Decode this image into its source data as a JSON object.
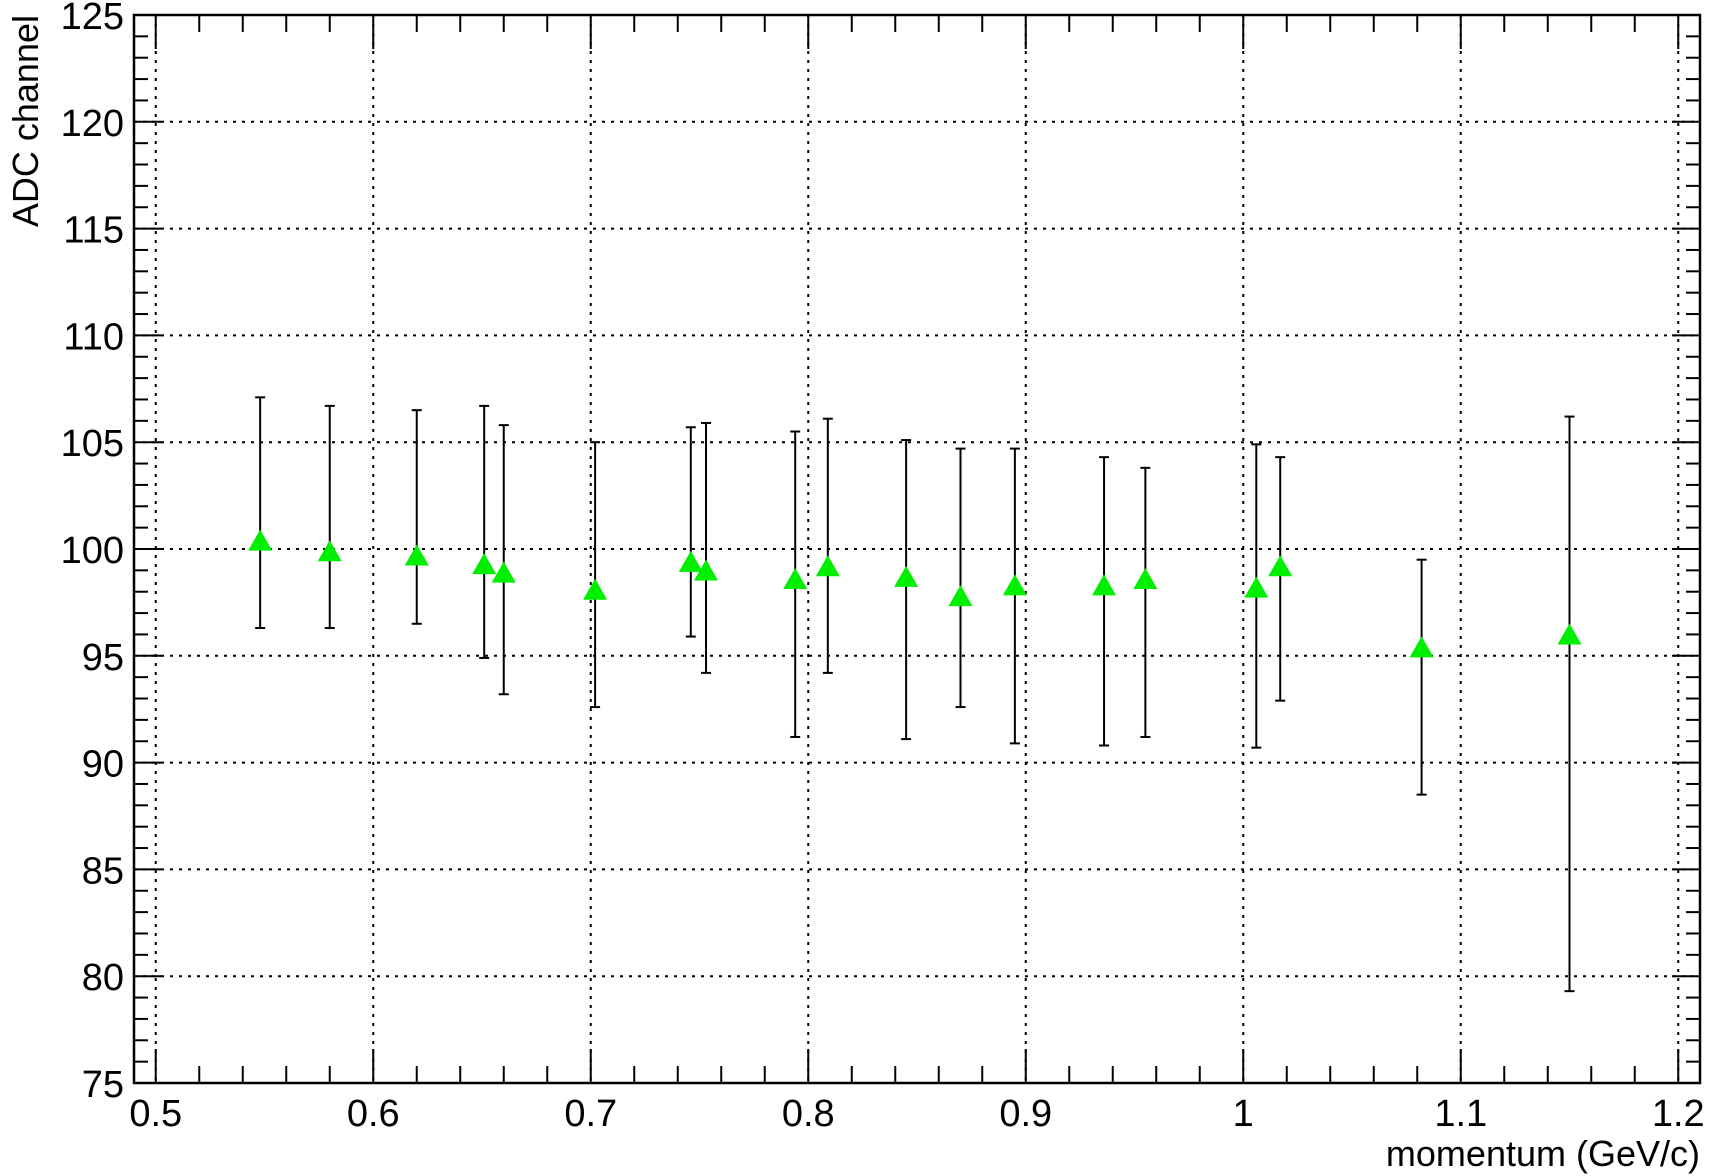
{
  "chart_data": {
    "type": "scatter",
    "title": "",
    "xlabel": "momentum (GeV/c)",
    "ylabel": "ADC channel",
    "xlim": [
      0.49,
      1.21
    ],
    "ylim": [
      75,
      125
    ],
    "x_major_ticks": [
      0.5,
      0.6,
      0.7,
      0.8,
      0.9,
      1,
      1.1,
      1.2
    ],
    "x_tick_labels": [
      "0.5",
      "0.6",
      "0.7",
      "0.8",
      "0.9",
      "1",
      "1.1",
      "1.2"
    ],
    "x_minor_step": 0.02,
    "y_major_ticks": [
      75,
      80,
      85,
      90,
      95,
      100,
      105,
      110,
      115,
      120,
      125
    ],
    "y_tick_labels": [
      "75",
      "80",
      "85",
      "90",
      "95",
      "100",
      "105",
      "110",
      "115",
      "120",
      "125"
    ],
    "y_minor_step": 1,
    "grid": true,
    "marker": "triangle-up",
    "marker_color": "#00ee00",
    "error_bar_color": "#000000",
    "series": [
      {
        "points": [
          {
            "x": 0.548,
            "y": 100.3,
            "err_low": 4.0,
            "err_high": 6.8
          },
          {
            "x": 0.58,
            "y": 99.8,
            "err_low": 3.5,
            "err_high": 6.9
          },
          {
            "x": 0.62,
            "y": 99.6,
            "err_low": 3.1,
            "err_high": 6.9
          },
          {
            "x": 0.651,
            "y": 99.2,
            "err_low": 4.3,
            "err_high": 7.5
          },
          {
            "x": 0.66,
            "y": 98.8,
            "err_low": 5.6,
            "err_high": 7.0
          },
          {
            "x": 0.702,
            "y": 98.0,
            "err_low": 5.4,
            "err_high": 7.0
          },
          {
            "x": 0.746,
            "y": 99.3,
            "err_low": 3.4,
            "err_high": 6.4
          },
          {
            "x": 0.753,
            "y": 98.9,
            "err_low": 4.7,
            "err_high": 7.0
          },
          {
            "x": 0.794,
            "y": 98.5,
            "err_low": 7.3,
            "err_high": 7.0
          },
          {
            "x": 0.809,
            "y": 99.1,
            "err_low": 4.9,
            "err_high": 7.0
          },
          {
            "x": 0.845,
            "y": 98.6,
            "err_low": 7.5,
            "err_high": 6.5
          },
          {
            "x": 0.87,
            "y": 97.7,
            "err_low": 5.1,
            "err_high": 7.0
          },
          {
            "x": 0.895,
            "y": 98.2,
            "err_low": 7.3,
            "err_high": 6.5
          },
          {
            "x": 0.936,
            "y": 98.2,
            "err_low": 7.4,
            "err_high": 6.1
          },
          {
            "x": 0.955,
            "y": 98.5,
            "err_low": 7.3,
            "err_high": 5.3
          },
          {
            "x": 1.006,
            "y": 98.1,
            "err_low": 7.4,
            "err_high": 6.8
          },
          {
            "x": 1.017,
            "y": 99.1,
            "err_low": 6.2,
            "err_high": 5.2
          },
          {
            "x": 1.082,
            "y": 95.3,
            "err_low": 6.8,
            "err_high": 4.2
          },
          {
            "x": 1.15,
            "y": 95.9,
            "err_low": 16.6,
            "err_high": 10.3
          }
        ]
      }
    ]
  }
}
